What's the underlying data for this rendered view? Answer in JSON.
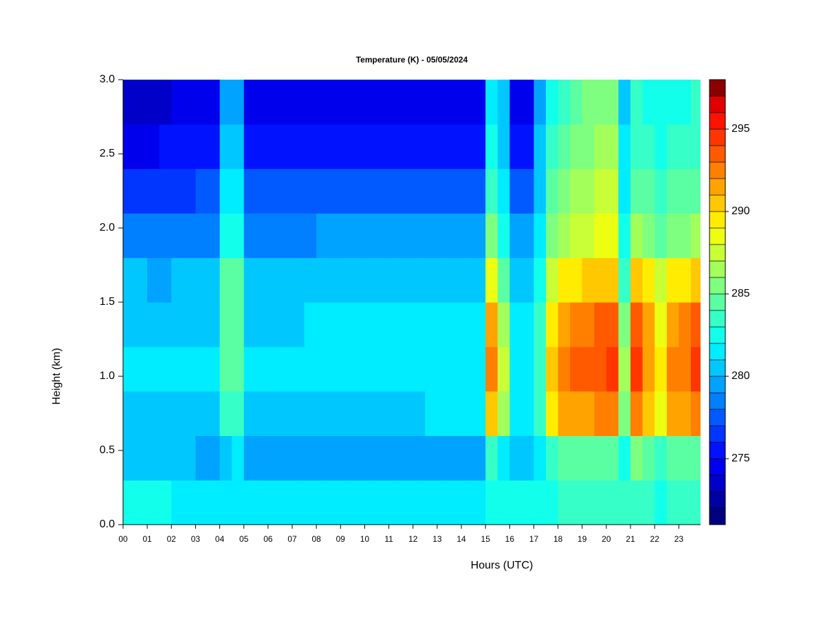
{
  "chart_data": {
    "type": "heatmap",
    "title": "Temperature (K) - 05/05/2024",
    "xlabel": "Hours (UTC)",
    "ylabel": "Height (km)",
    "xlim": [
      0,
      23.9
    ],
    "xticks": [
      {
        "value": 0,
        "label": "00"
      },
      {
        "value": 1,
        "label": "01"
      },
      {
        "value": 2,
        "label": "02"
      },
      {
        "value": 3,
        "label": "03"
      },
      {
        "value": 4,
        "label": "04"
      },
      {
        "value": 5,
        "label": "05"
      },
      {
        "value": 6,
        "label": "06"
      },
      {
        "value": 7,
        "label": "07"
      },
      {
        "value": 8,
        "label": "08"
      },
      {
        "value": 9,
        "label": "09"
      },
      10,
      11,
      12,
      13,
      14,
      15,
      16,
      17,
      18,
      19,
      20,
      21,
      22,
      23
    ],
    "ylim": [
      0,
      3
    ],
    "yticks": [
      {
        "value": 0,
        "label": "0.0"
      },
      0.5,
      {
        "value": 1,
        "label": "1.0"
      },
      1.5,
      {
        "value": 2,
        "label": "2.0"
      },
      2.5,
      {
        "value": 3,
        "label": "3.0"
      }
    ],
    "zlim": [
      271,
      298
    ],
    "zticks": [
      275,
      280,
      285,
      290,
      295
    ],
    "colors": [
      "#00007f",
      "#0000a3",
      "#0000c8",
      "#0000ec",
      "#0012ff",
      "#0036ff",
      "#005aff",
      "#007fff",
      "#00a3ff",
      "#00c8ff",
      "#00ecff",
      "#12ffec",
      "#36ffc8",
      "#5affa3",
      "#7fff7f",
      "#a3ff5a",
      "#c8ff36",
      "#ecff12",
      "#ffec00",
      "#ffc800",
      "#ffa300",
      "#ff7f00",
      "#ff5a00",
      "#ff3600",
      "#ff1200",
      "#e00000",
      "#8b0000"
    ],
    "x": [
      0.25,
      0.75,
      1.25,
      1.75,
      2.25,
      2.75,
      3.25,
      3.75,
      4.25,
      4.75,
      5.25,
      5.75,
      6.25,
      6.75,
      7.25,
      7.75,
      8.25,
      8.75,
      9.25,
      9.75,
      10.25,
      10.75,
      11.25,
      11.75,
      12.25,
      12.75,
      13.25,
      13.75,
      14.25,
      14.75,
      15.25,
      15.75,
      16.25,
      16.75,
      17.25,
      17.75,
      18.25,
      18.75,
      19.25,
      19.75,
      20.25,
      20.75,
      21.25,
      21.75,
      22.25,
      22.75,
      23.25,
      23.75
    ],
    "y": [
      0.15,
      0.45,
      0.75,
      1.05,
      1.35,
      1.65,
      1.95,
      2.25,
      2.55,
      2.85
    ],
    "z": [
      [
        282.8,
        282.5,
        282.2,
        282,
        281.8,
        281.6,
        281.5,
        281.4,
        281.6,
        281.6,
        281.3,
        281.2,
        281.1,
        281,
        281,
        281,
        281,
        281,
        281,
        281,
        281,
        281,
        281.1,
        281.2,
        281.3,
        281.4,
        281.5,
        281.6,
        281.8,
        281.9,
        282.5,
        282.3,
        282,
        282.1,
        282.3,
        282.8,
        283,
        283,
        283,
        283,
        283,
        283,
        283.2,
        283,
        282.8,
        283,
        283,
        283.2
      ],
      [
        280.6,
        280.5,
        280.4,
        280.3,
        280.2,
        280,
        279.8,
        279.6,
        280.5,
        281,
        279.5,
        279.4,
        279.3,
        279.3,
        279.3,
        279.3,
        279.2,
        279.3,
        279.3,
        279.3,
        279.4,
        279.4,
        279.5,
        279.5,
        279.6,
        279.6,
        279.6,
        279.7,
        279.7,
        279.9,
        283,
        281.5,
        280.5,
        280.4,
        281.2,
        283,
        284.5,
        284.7,
        284.8,
        284.8,
        284.5,
        282,
        285,
        284.5,
        283.5,
        284.5,
        284,
        284.5
      ],
      [
        280.8,
        280.8,
        280.7,
        280.7,
        280.6,
        280.6,
        280.6,
        280.6,
        283.5,
        283.8,
        280.6,
        280.6,
        280.6,
        280.7,
        280.7,
        280.7,
        280.7,
        280.8,
        280.8,
        280.8,
        280.8,
        280.8,
        280.9,
        280.9,
        280.9,
        281,
        281,
        281,
        281,
        281,
        290,
        286,
        281.2,
        281.2,
        283,
        289,
        291,
        291.5,
        291.5,
        292,
        292.5,
        285,
        292,
        290.5,
        288,
        291,
        291.5,
        292.5
      ],
      [
        281.1,
        281.1,
        281,
        281,
        281,
        281,
        281,
        281,
        284.5,
        284.8,
        281,
        281,
        281.1,
        281.1,
        281.1,
        281.2,
        281.2,
        281.2,
        281.2,
        281.2,
        281.3,
        281.3,
        281.3,
        281.3,
        281.3,
        281.4,
        281.4,
        281.4,
        281.4,
        281.5,
        292.5,
        287,
        281.4,
        281.4,
        283.5,
        290,
        292.5,
        293,
        293.2,
        293.5,
        294,
        286,
        294,
        291.5,
        289,
        292,
        292.5,
        294
      ],
      [
        280.9,
        280.9,
        280.8,
        280.8,
        280.8,
        280.8,
        280.8,
        280.8,
        284.5,
        284.6,
        280.8,
        280.8,
        280.9,
        280.9,
        280.9,
        281,
        281,
        281,
        281,
        281,
        281.1,
        281.1,
        281.1,
        281.1,
        281.2,
        281.2,
        281.2,
        281.2,
        281.2,
        281.3,
        291.5,
        286.5,
        281.2,
        281.2,
        283.2,
        289.5,
        291.5,
        292,
        292.5,
        293,
        293,
        285.5,
        293.2,
        291,
        288.5,
        291.5,
        292,
        293
      ],
      [
        280,
        280,
        279.9,
        279.9,
        280,
        280,
        280,
        280,
        284,
        284.2,
        280.1,
        280.1,
        280.2,
        280.2,
        280.3,
        280.3,
        280.3,
        280.4,
        280.4,
        280.4,
        280.5,
        280.5,
        280.5,
        280.5,
        280.5,
        280.6,
        280.6,
        280.6,
        280.6,
        280.7,
        288.5,
        284.5,
        280.6,
        280.6,
        282.5,
        287.5,
        289,
        289.5,
        290,
        290.5,
        290.5,
        283.5,
        290.5,
        289,
        287,
        289,
        289.5,
        290
      ],
      [
        278.5,
        278.5,
        278.4,
        278.4,
        278.5,
        278.5,
        278.6,
        278.6,
        282.5,
        282.8,
        278.7,
        278.7,
        278.8,
        278.8,
        278.9,
        278.9,
        279,
        279,
        279,
        279,
        279,
        279.1,
        279.1,
        279.1,
        279.2,
        279.2,
        279.2,
        279.2,
        279.2,
        279.3,
        285.5,
        282.5,
        279.3,
        279.3,
        281.5,
        285.5,
        286.5,
        287,
        287.5,
        288,
        288,
        282,
        286.5,
        285.5,
        284.5,
        285.5,
        285.5,
        286
      ],
      [
        276.5,
        276.5,
        276.6,
        276.6,
        276.8,
        276.9,
        277,
        277,
        281.5,
        281.8,
        277.2,
        277.2,
        277.3,
        277.3,
        277.3,
        277.4,
        277.4,
        277.4,
        277.4,
        277.4,
        277.5,
        277.5,
        277.5,
        277.5,
        277.5,
        277.5,
        277.5,
        277.5,
        277.5,
        277.6,
        283.5,
        281.5,
        277.5,
        277.5,
        280.5,
        284,
        285,
        286,
        286.5,
        287,
        287,
        281.5,
        284.5,
        284,
        283,
        284,
        284,
        284.5
      ],
      [
        274.5,
        274.6,
        274.8,
        275,
        275.2,
        275.3,
        275.4,
        275.5,
        280.5,
        280.5,
        275.5,
        275.5,
        275.6,
        275.6,
        275.6,
        275.6,
        275.7,
        275.7,
        275.7,
        275.7,
        275.8,
        275.8,
        275.8,
        275.8,
        275.8,
        275.8,
        275.8,
        275.8,
        275.8,
        275.9,
        282,
        280.5,
        275.8,
        275.8,
        280,
        283,
        284,
        285,
        285.5,
        286,
        286,
        281,
        283.5,
        283,
        282.5,
        283,
        283,
        283.5
      ],
      [
        273.3,
        273.4,
        273.6,
        273.8,
        274,
        274.2,
        274.3,
        274.4,
        279.5,
        279.5,
        274.4,
        274.3,
        274.3,
        274.3,
        274.3,
        274.3,
        274.3,
        274.4,
        274.4,
        274.4,
        274.4,
        274.5,
        274.5,
        274.5,
        274.5,
        274.5,
        274.5,
        274.6,
        274.6,
        274.7,
        281.5,
        280,
        274.8,
        274.8,
        279.5,
        282.5,
        283.5,
        284.5,
        285,
        285.5,
        285.5,
        280.5,
        283,
        282.5,
        282,
        282.5,
        282.5,
        283
      ]
    ]
  }
}
